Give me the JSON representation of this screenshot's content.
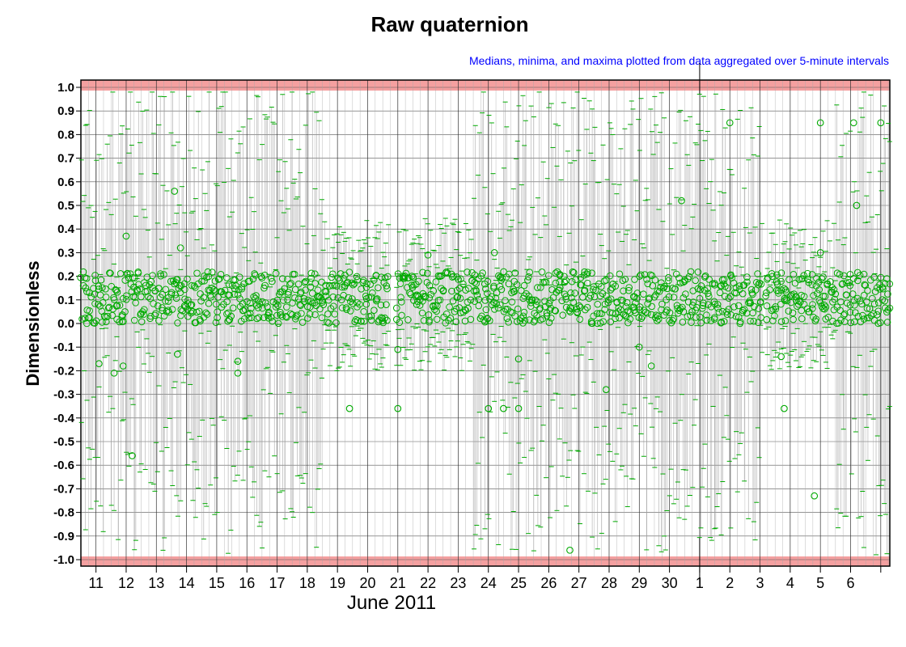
{
  "chart_data": {
    "type": "scatter",
    "title": "Raw quaternion",
    "subtitle": "Medians, minima, and maxima plotted from data aggregated over 5-minute intervals",
    "ylabel": "Dimensionless",
    "xlabel": "June 2011",
    "ylim": [
      -1.0,
      1.0
    ],
    "yticks": [
      "1.0",
      "0.9",
      "0.8",
      "0.7",
      "0.6",
      "0.5",
      "0.4",
      "0.3",
      "0.2",
      "0.1",
      "0.0",
      "-0.1",
      "-0.2",
      "-0.3",
      "-0.4",
      "-0.5",
      "-0.6",
      "-0.7",
      "-0.8",
      "-0.9",
      "-1.0"
    ],
    "x_day_labels": [
      "11",
      "12",
      "13",
      "14",
      "15",
      "16",
      "17",
      "18",
      "19",
      "20",
      "21",
      "22",
      "23",
      "24",
      "25",
      "26",
      "27",
      "28",
      "29",
      "30",
      "1",
      "2",
      "3",
      "4",
      "5",
      "6"
    ],
    "x_range_days": [
      10.5,
      37.3
    ],
    "grid": true,
    "limit_bands": [
      1.0,
      -1.0
    ],
    "colors": {
      "points": "#00aa00",
      "range_lines": "#999999",
      "limit_band": "#f4a0a0",
      "subtitle": "#0000ff"
    },
    "series": [
      {
        "name": "Medians",
        "marker": "circle"
      },
      {
        "name": "Minima",
        "marker": "dash"
      },
      {
        "name": "Maxima",
        "marker": "dash"
      }
    ],
    "notable_medians": [
      {
        "x": 11.1,
        "y": -0.17
      },
      {
        "x": 12.0,
        "y": 0.37
      },
      {
        "x": 11.6,
        "y": -0.21
      },
      {
        "x": 11.9,
        "y": -0.18
      },
      {
        "x": 12.2,
        "y": -0.56
      },
      {
        "x": 13.6,
        "y": 0.56
      },
      {
        "x": 13.8,
        "y": 0.32
      },
      {
        "x": 13.7,
        "y": -0.13
      },
      {
        "x": 15.7,
        "y": -0.21
      },
      {
        "x": 15.7,
        "y": -0.16
      },
      {
        "x": 19.4,
        "y": -0.36
      },
      {
        "x": 21.0,
        "y": -0.11
      },
      {
        "x": 21.0,
        "y": -0.36
      },
      {
        "x": 22.0,
        "y": 0.29
      },
      {
        "x": 24.2,
        "y": 0.3
      },
      {
        "x": 24.0,
        "y": -0.36
      },
      {
        "x": 24.5,
        "y": -0.36
      },
      {
        "x": 25.0,
        "y": -0.36
      },
      {
        "x": 25.0,
        "y": -0.15
      },
      {
        "x": 26.7,
        "y": -0.96
      },
      {
        "x": 27.9,
        "y": -0.28
      },
      {
        "x": 29.0,
        "y": -0.1
      },
      {
        "x": 29.4,
        "y": -0.18
      },
      {
        "x": 30.4,
        "y": 0.52
      },
      {
        "x": 32.0,
        "y": 0.85
      },
      {
        "x": 33.7,
        "y": -0.14
      },
      {
        "x": 33.8,
        "y": -0.36
      },
      {
        "x": 35.0,
        "y": 0.3
      },
      {
        "x": 34.8,
        "y": -0.73
      },
      {
        "x": 35.0,
        "y": 0.85
      },
      {
        "x": 36.1,
        "y": 0.85
      },
      {
        "x": 36.2,
        "y": 0.5
      },
      {
        "x": 37.0,
        "y": 0.85
      }
    ]
  }
}
